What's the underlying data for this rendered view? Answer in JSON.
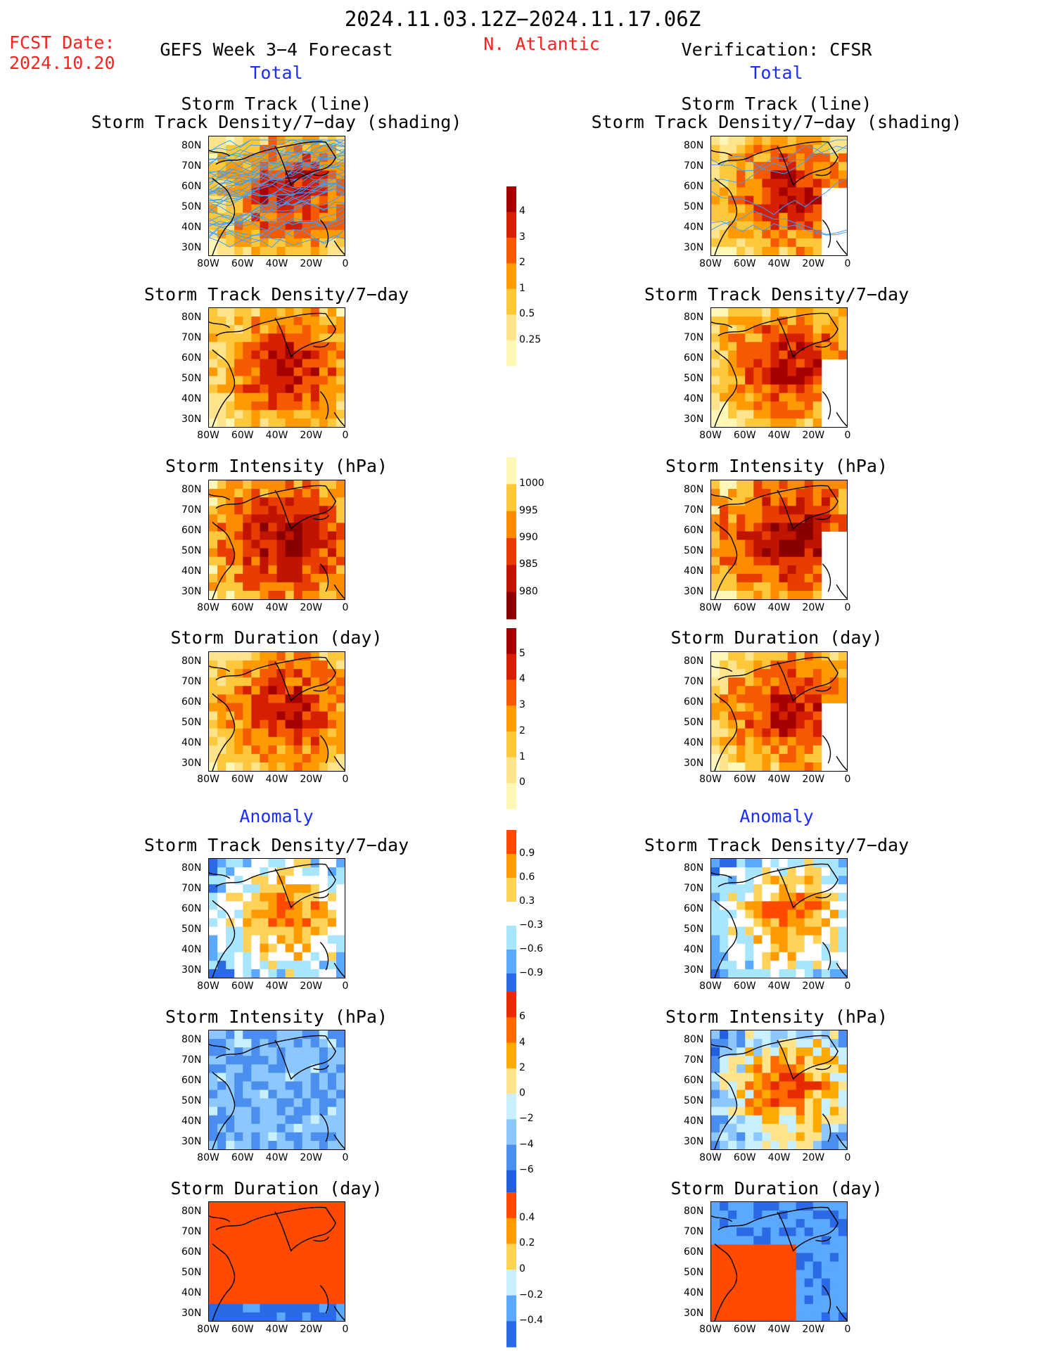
{
  "header": {
    "title": "2024.11.03.12Z−2024.11.17.06Z",
    "region": "N. Atlantic",
    "fcst_label": "FCST Date:",
    "fcst_date": "2024.10.20",
    "left_model": "GEFS Week 3−4 Forecast",
    "right_model": "Verification: CFSR",
    "total_label": "Total",
    "anomaly_label": "Anomaly"
  },
  "panel_titles": {
    "track_line": "Storm Track (line)",
    "track_shading": "Storm Track Density/7−day (shading)",
    "density": "Storm Track Density/7−day",
    "intensity": "Storm Intensity (hPa)",
    "duration": "Storm Duration (day)"
  },
  "axes": {
    "lat_ticks": [
      "80N",
      "70N",
      "60N",
      "50N",
      "40N",
      "30N"
    ],
    "lon_ticks": [
      "80W",
      "60W",
      "40W",
      "20W",
      "0"
    ]
  },
  "colorbars": {
    "density_total": {
      "labels": [
        "4",
        "3",
        "2",
        "1",
        "0.5",
        "0.25"
      ],
      "colors": [
        "#a50000",
        "#d42000",
        "#f55a00",
        "#ff9a00",
        "#ffc83c",
        "#ffe48c",
        "#fff7b8"
      ]
    },
    "intensity_total": {
      "labels": [
        "1000",
        "995",
        "990",
        "985",
        "980"
      ],
      "colors": [
        "#fff7b8",
        "#ffc83c",
        "#ff8c00",
        "#e83c00",
        "#c01400",
        "#8a0000"
      ]
    },
    "duration_total": {
      "labels": [
        "5",
        "4",
        "3",
        "2",
        "1",
        "0"
      ],
      "colors": [
        "#a50000",
        "#d42000",
        "#f55a00",
        "#ff9a00",
        "#ffc83c",
        "#ffe48c",
        "#fff7b8"
      ]
    },
    "density_anom": {
      "labels": [
        "0.9",
        "0.6",
        "0.3",
        "−0.3",
        "−0.6",
        "−0.9"
      ],
      "colors": [
        "#ff4a00",
        "#ff9a00",
        "#ffd25a",
        "#ffffff",
        "#a8e6ff",
        "#5aa8ff",
        "#2a6ae6"
      ]
    },
    "intensity_anom": {
      "labels": [
        "6",
        "4",
        "2",
        "0",
        "−2",
        "−4",
        "−6"
      ],
      "colors": [
        "#e82a00",
        "#ff6a00",
        "#ffaa00",
        "#ffe48c",
        "#c8f0ff",
        "#8cc8ff",
        "#4a8ef0",
        "#2060e0"
      ]
    },
    "duration_anom": {
      "labels": [
        "0.4",
        "0.2",
        "0",
        "−0.2",
        "−0.4"
      ],
      "colors": [
        "#ff4a00",
        "#ff9a00",
        "#ffd25a",
        "#c8f0ff",
        "#5aa8ff",
        "#2a6ae6"
      ]
    }
  },
  "colors": {
    "title_red": "#ff2020",
    "label_blue": "#1a2cff",
    "track_line": "#3aa0ff"
  }
}
